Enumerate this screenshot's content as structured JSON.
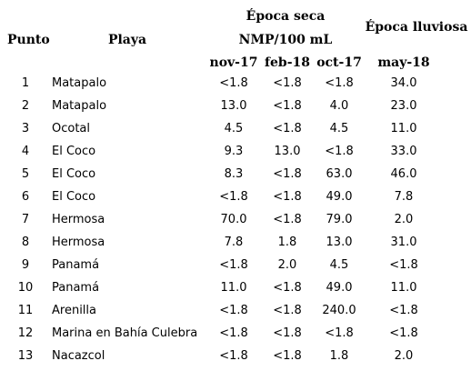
{
  "header": {
    "punto": "Punto",
    "playa": "Playa",
    "epoca_seca": "Época seca",
    "unit": "NMP/100 mL",
    "epoca_lluviosa": "Época lluviosa",
    "months": [
      "nov-17",
      "feb-18",
      "oct-17",
      "may-18"
    ]
  },
  "rows": [
    {
      "punto": "1",
      "playa": "Matapalo",
      "v": [
        "<1.8",
        "<1.8",
        "<1.8",
        "34.0"
      ]
    },
    {
      "punto": "2",
      "playa": "Matapalo",
      "v": [
        "13.0",
        "<1.8",
        "4.0",
        "23.0"
      ]
    },
    {
      "punto": "3",
      "playa": "Ocotal",
      "v": [
        "4.5",
        "<1.8",
        "4.5",
        "11.0"
      ]
    },
    {
      "punto": "4",
      "playa": "El Coco",
      "v": [
        "9.3",
        "13.0",
        "<1.8",
        "33.0"
      ]
    },
    {
      "punto": "5",
      "playa": "El Coco",
      "v": [
        "8.3",
        "<1.8",
        "63.0",
        "46.0"
      ]
    },
    {
      "punto": "6",
      "playa": "El Coco",
      "v": [
        "<1.8",
        "<1.8",
        "49.0",
        "7.8"
      ]
    },
    {
      "punto": "7",
      "playa": "Hermosa",
      "v": [
        "70.0",
        "<1.8",
        "79.0",
        "2.0"
      ]
    },
    {
      "punto": "8",
      "playa": "Hermosa",
      "v": [
        "7.8",
        "1.8",
        "13.0",
        "31.0"
      ]
    },
    {
      "punto": "9",
      "playa": "Panamá",
      "v": [
        "<1.8",
        "2.0",
        "4.5",
        "<1.8"
      ]
    },
    {
      "punto": "10",
      "playa": "Panamá",
      "v": [
        "11.0",
        "<1.8",
        "49.0",
        "11.0"
      ]
    },
    {
      "punto": "11",
      "playa": "Arenilla",
      "v": [
        "<1.8",
        "<1.8",
        "240.0",
        "<1.8"
      ]
    },
    {
      "punto": "12",
      "playa": "Marina en Bahía Culebra",
      "v": [
        "<1.8",
        "<1.8",
        "<1.8",
        "<1.8"
      ]
    },
    {
      "punto": "13",
      "playa": "Nacazcol",
      "v": [
        "<1.8",
        "<1.8",
        "1.8",
        "2.0"
      ]
    }
  ]
}
